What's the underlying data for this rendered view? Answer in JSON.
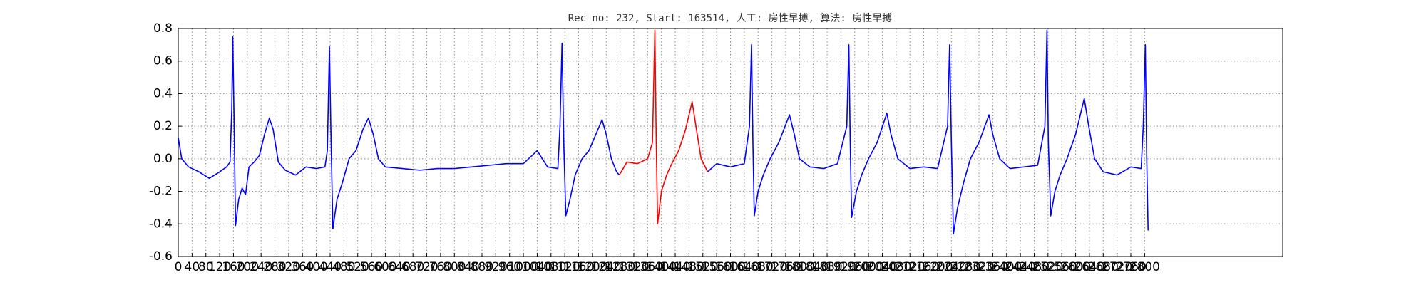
{
  "chart_data": {
    "type": "line",
    "title": "Rec_no: 232, Start: 163514, 人工: 房性早搏, 算法: 房性早搏",
    "series": [
      {
        "color": "#0000ff",
        "x": [
          0,
          10,
          30,
          60,
          90,
          120,
          140,
          150,
          155,
          158,
          162,
          166,
          175,
          185,
          195,
          205,
          220,
          235,
          250,
          264,
          275,
          290,
          310,
          340,
          370,
          400,
          425,
          432,
          438,
          442,
          448,
          460,
          475,
          495,
          515,
          535,
          551,
          565,
          580,
          600,
          650,
          700,
          750,
          800,
          850,
          900,
          950,
          1000,
          1040,
          1070,
          1100,
          1106,
          1112,
          1117,
          1123,
          1135,
          1150,
          1170,
          1190,
          1210,
          1228,
          1240,
          1255,
          1270,
          1278,
          1381,
          1534,
          1560,
          1600,
          1640,
          1655,
          1661,
          1665,
          1669,
          1680,
          1695,
          1715,
          1740,
          1771,
          1785,
          1800,
          1830,
          1870,
          1910,
          1937,
          1943,
          1947,
          1951,
          1965,
          1980,
          2000,
          2025,
          2053,
          2065,
          2085,
          2120,
          2160,
          2200,
          2229,
          2235,
          2240,
          2246,
          2258,
          2275,
          2295,
          2320,
          2349,
          2360,
          2380,
          2410,
          2450,
          2490,
          2511,
          2517,
          2521,
          2528,
          2540,
          2555,
          2575,
          2600,
          2625,
          2638,
          2655,
          2680,
          2720,
          2760,
          2790,
          2796,
          2802,
          2806,
          2810
        ],
        "values": [
          0.13,
          0.0,
          -0.05,
          -0.08,
          -0.12,
          -0.08,
          -0.05,
          -0.02,
          0.3,
          0.75,
          0.2,
          -0.41,
          -0.25,
          -0.18,
          -0.22,
          -0.05,
          -0.02,
          0.02,
          0.15,
          0.25,
          0.18,
          -0.02,
          -0.07,
          -0.1,
          -0.05,
          -0.06,
          -0.05,
          0.05,
          0.69,
          0.2,
          -0.43,
          -0.25,
          -0.15,
          0.0,
          0.05,
          0.18,
          0.25,
          0.15,
          0.0,
          -0.05,
          -0.06,
          -0.07,
          -0.06,
          -0.06,
          -0.05,
          -0.04,
          -0.03,
          -0.03,
          0.05,
          -0.05,
          -0.06,
          0.2,
          0.71,
          0.1,
          -0.35,
          -0.25,
          -0.1,
          0.0,
          0.05,
          0.15,
          0.24,
          0.15,
          0.0,
          -0.08,
          -0.1,
          null,
          -0.08,
          -0.03,
          -0.05,
          -0.03,
          0.2,
          0.7,
          0.1,
          -0.35,
          -0.2,
          -0.1,
          0.0,
          0.1,
          0.27,
          0.15,
          0.0,
          -0.05,
          -0.06,
          -0.03,
          0.2,
          0.7,
          0.1,
          -0.36,
          -0.2,
          -0.1,
          0.0,
          0.1,
          0.28,
          0.15,
          0.0,
          -0.06,
          -0.05,
          -0.06,
          0.2,
          0.7,
          0.1,
          -0.46,
          -0.3,
          -0.15,
          0.0,
          0.1,
          0.27,
          0.15,
          0.0,
          -0.06,
          -0.05,
          -0.04,
          0.2,
          0.79,
          0.1,
          -0.35,
          -0.2,
          -0.1,
          0.0,
          0.15,
          0.37,
          0.2,
          0.0,
          -0.08,
          -0.1,
          -0.05,
          -0.06,
          0.2,
          0.7,
          0.0,
          -0.44
        ]
      },
      {
        "color": "#ff0000",
        "x": [
          1278,
          1300,
          1330,
          1360,
          1374,
          1381,
          1385,
          1389,
          1400,
          1415,
          1430,
          1450,
          1470,
          1489,
          1500,
          1515,
          1534
        ],
        "values": [
          -0.1,
          -0.02,
          -0.03,
          0.0,
          0.1,
          0.79,
          0.1,
          -0.4,
          -0.2,
          -0.1,
          -0.03,
          0.05,
          0.18,
          0.35,
          0.2,
          0.0,
          -0.08
        ]
      }
    ],
    "xlim": [
      0,
      3200
    ],
    "xticks": [
      0,
      40,
      80,
      120,
      160,
      200,
      240,
      280,
      320,
      360,
      400,
      440,
      480,
      520,
      560,
      600,
      640,
      680,
      720,
      760,
      800,
      840,
      880,
      920,
      960,
      1000,
      1040,
      1080,
      1120,
      1160,
      1200,
      1240,
      1280,
      1320,
      1360,
      1400,
      1440,
      1480,
      1520,
      1560,
      1600,
      1640,
      1680,
      1720,
      1760,
      1800,
      1840,
      1880,
      1920,
      1960,
      2000,
      2040,
      2080,
      2120,
      2160,
      2200,
      2240,
      2280,
      2320,
      2360,
      2400,
      2440,
      2480,
      2520,
      2560,
      2600,
      2640,
      2680,
      2720,
      2760,
      2800
    ],
    "ylim": [
      -0.6,
      0.8
    ],
    "yticks": [
      -0.6,
      -0.4,
      -0.2,
      {
        "value": 0,
        "label": "0.0"
      },
      0.2,
      0.4,
      0.6,
      0.8
    ],
    "grid": true
  }
}
